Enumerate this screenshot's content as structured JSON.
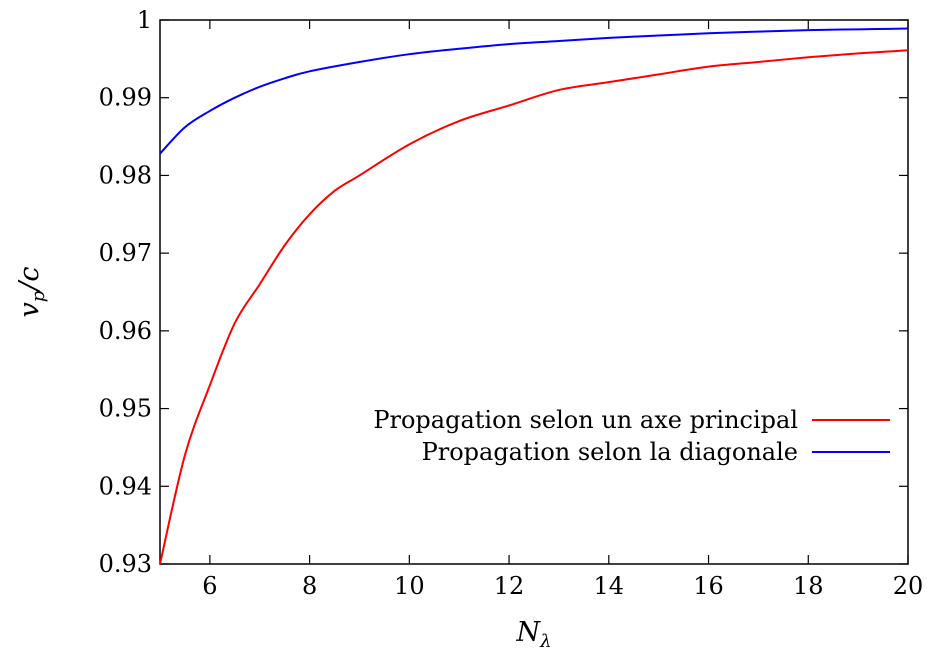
{
  "chart_data": {
    "type": "line",
    "xlabel": "N",
    "xlabel_sub": "λ",
    "ylabel": "v",
    "ylabel_sub": "p",
    "ylabel_tail": "/c",
    "xlim": [
      5,
      20
    ],
    "ylim": [
      0.93,
      1.0
    ],
    "xticks": [
      6,
      8,
      10,
      12,
      14,
      16,
      18,
      20
    ],
    "xtick_labels": [
      "6",
      "8",
      "10",
      "12",
      "14",
      "16",
      "18",
      "20"
    ],
    "yticks": [
      0.93,
      0.94,
      0.95,
      0.96,
      0.97,
      0.98,
      0.99,
      1.0
    ],
    "ytick_labels": [
      "0.93",
      "0.94",
      "0.95",
      "0.96",
      "0.97",
      "0.98",
      "0.99",
      "1"
    ],
    "grid": false,
    "legend_position": "right",
    "series": [
      {
        "name": "Propagation selon un axe principal",
        "color": "#ff0000",
        "x": [
          5,
          5.5,
          6,
          6.5,
          7,
          7.5,
          8,
          8.5,
          9,
          10,
          11,
          12,
          13,
          14,
          15,
          16,
          17,
          18,
          19,
          20
        ],
        "y": [
          0.93,
          0.944,
          0.953,
          0.961,
          0.966,
          0.971,
          0.975,
          0.978,
          0.98,
          0.984,
          0.987,
          0.989,
          0.991,
          0.992,
          0.993,
          0.994,
          0.9946,
          0.9952,
          0.9957,
          0.9961
        ]
      },
      {
        "name": "Propagation selon la diagonale",
        "color": "#0000ff",
        "x": [
          5,
          5.5,
          6,
          6.5,
          7,
          7.5,
          8,
          9,
          10,
          11,
          12,
          13,
          14,
          15,
          16,
          17,
          18,
          19,
          20
        ],
        "y": [
          0.9828,
          0.9862,
          0.9883,
          0.99,
          0.9914,
          0.9925,
          0.9934,
          0.9946,
          0.9956,
          0.9963,
          0.9969,
          0.9973,
          0.9977,
          0.998,
          0.9983,
          0.9985,
          0.9987,
          0.9988,
          0.9989
        ]
      }
    ]
  }
}
